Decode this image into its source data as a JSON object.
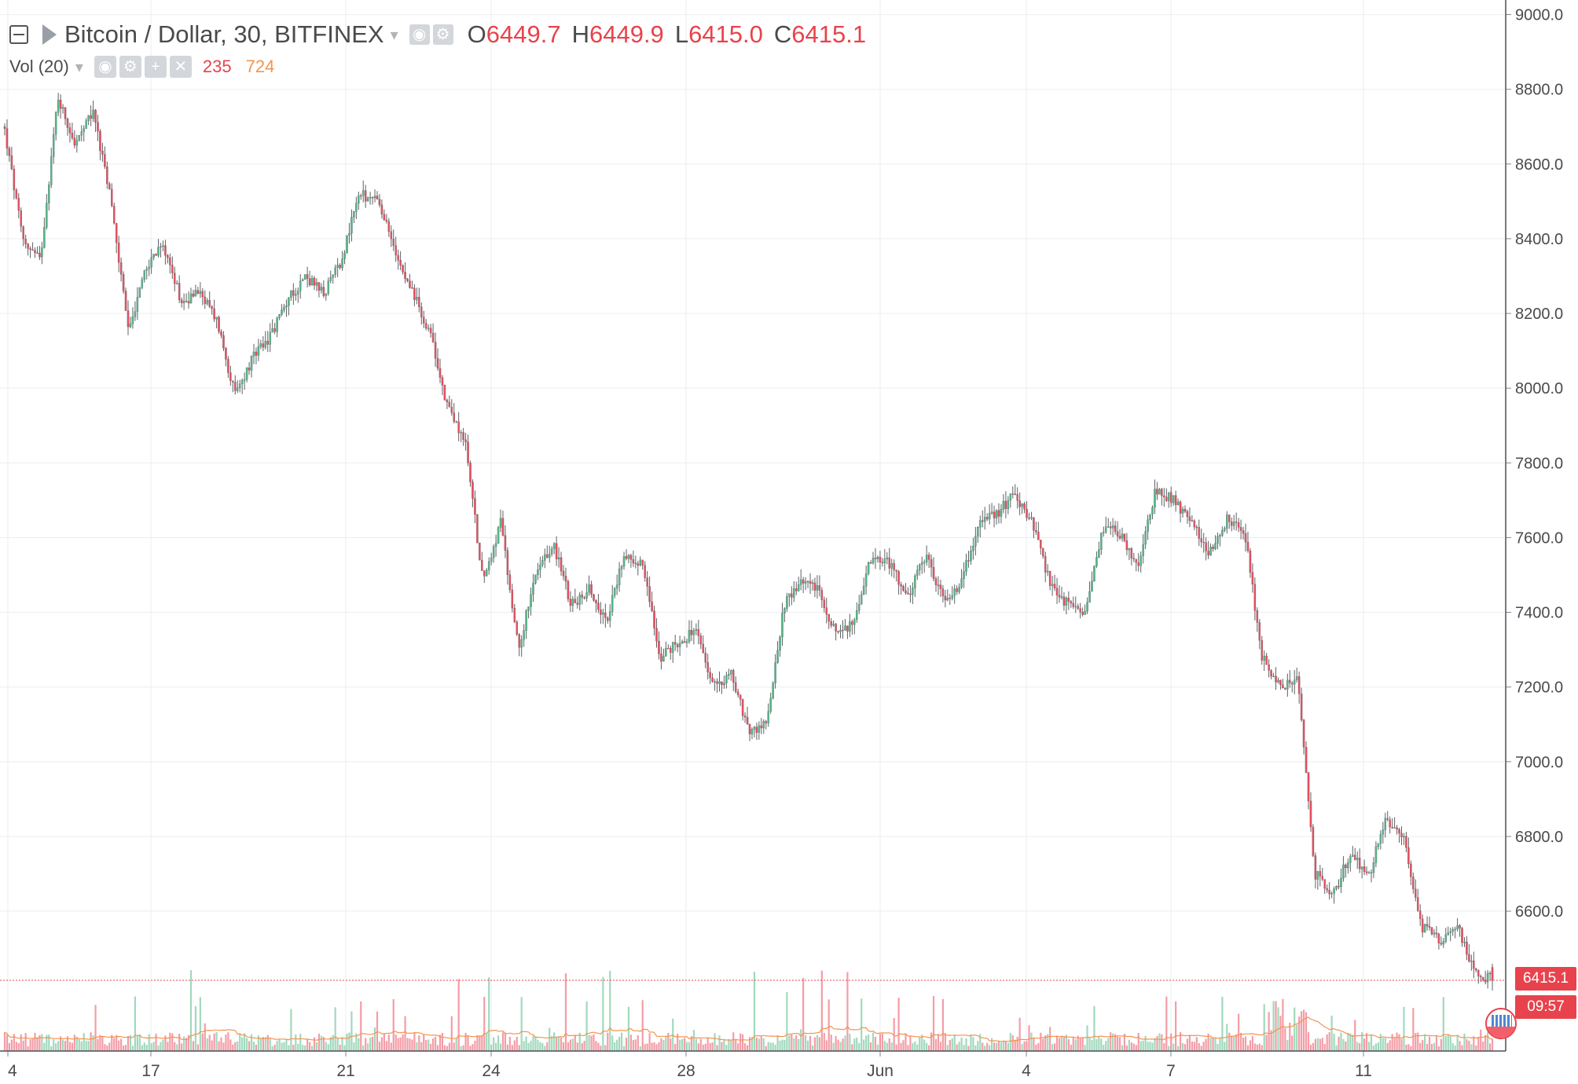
{
  "legend": {
    "title": "Bitcoin / Dollar, 30, BITFINEX",
    "open_label": "O",
    "open_value": "6449.7",
    "high_label": "H",
    "high_value": "6449.9",
    "low_label": "L",
    "low_value": "6415.0",
    "close_label": "C",
    "close_value": "6415.1",
    "volume_indicator": "Vol (20)",
    "volume_value": "235",
    "volume_ma_value": "724"
  },
  "price_axis": {
    "labels": [
      "9000.0",
      "8800.0",
      "8600.0",
      "8400.0",
      "8200.0",
      "8000.0",
      "7800.0",
      "7600.0",
      "7400.0",
      "7200.0",
      "7000.0",
      "6800.0",
      "6600.0"
    ],
    "last_price": "6415.1",
    "countdown": "09:57"
  },
  "time_axis": {
    "labels": [
      "4",
      "17",
      "21",
      "24",
      "28",
      "Jun",
      "4",
      "7",
      "11"
    ]
  },
  "colors": {
    "up": "#53b987",
    "down": "#eb4d5c",
    "volume_ma": "#f4944e",
    "grid": "#edf0f3",
    "axis_text": "#4a4a4a",
    "last_price": "#e8434c"
  },
  "icons": [
    "collapse-icon",
    "series-flag-icon",
    "dropdown-caret-icon",
    "eye-icon",
    "gear-icon",
    "plus-icon",
    "close-icon",
    "currency-flag-icon"
  ],
  "chart_data": {
    "type": "candlestick",
    "symbol": "Bitcoin / Dollar",
    "interval": "30",
    "exchange": "BITFINEX",
    "ylim": [
      6380,
      9020
    ],
    "y_ticks": [
      6600,
      6800,
      7000,
      7200,
      7400,
      7600,
      7800,
      8000,
      8200,
      8400,
      8600,
      8800,
      9000
    ],
    "x_tick_labels": [
      "4",
      "17",
      "21",
      "24",
      "28",
      "Jun",
      "4",
      "7",
      "11"
    ],
    "grid": true,
    "last_price": 6415.1,
    "last_bar": {
      "open": 6449.7,
      "high": 6449.9,
      "low": 6415.0,
      "close": 6415.1,
      "volume": 235,
      "volume_ma20": 724
    },
    "close_path": [
      {
        "x": "4",
        "y": 8690
      },
      {
        "x": "4",
        "y": 8400
      },
      {
        "x": "4",
        "y": 8340
      },
      {
        "x": "",
        "y": 8780
      },
      {
        "x": "",
        "y": 8650
      },
      {
        "x": "",
        "y": 8740
      },
      {
        "x": "",
        "y": 8500
      },
      {
        "x": "",
        "y": 8150
      },
      {
        "x": "",
        "y": 8330
      },
      {
        "x": "",
        "y": 8380
      },
      {
        "x": "",
        "y": 8230
      },
      {
        "x": "17",
        "y": 8260
      },
      {
        "x": "",
        "y": 8180
      },
      {
        "x": "",
        "y": 7980
      },
      {
        "x": "",
        "y": 8080
      },
      {
        "x": "",
        "y": 8140
      },
      {
        "x": "",
        "y": 8240
      },
      {
        "x": "",
        "y": 8300
      },
      {
        "x": "",
        "y": 8250
      },
      {
        "x": "",
        "y": 8340
      },
      {
        "x": "21",
        "y": 8520
      },
      {
        "x": "",
        "y": 8500
      },
      {
        "x": "",
        "y": 8380
      },
      {
        "x": "",
        "y": 8260
      },
      {
        "x": "",
        "y": 8150
      },
      {
        "x": "",
        "y": 7950
      },
      {
        "x": "",
        "y": 7860
      },
      {
        "x": "",
        "y": 7480
      },
      {
        "x": "24",
        "y": 7640
      },
      {
        "x": "",
        "y": 7300
      },
      {
        "x": "",
        "y": 7500
      },
      {
        "x": "",
        "y": 7580
      },
      {
        "x": "",
        "y": 7420
      },
      {
        "x": "",
        "y": 7460
      },
      {
        "x": "",
        "y": 7380
      },
      {
        "x": "",
        "y": 7560
      },
      {
        "x": "",
        "y": 7530
      },
      {
        "x": "",
        "y": 7280
      },
      {
        "x": "",
        "y": 7320
      },
      {
        "x": "",
        "y": 7350
      },
      {
        "x": "28",
        "y": 7200
      },
      {
        "x": "",
        "y": 7240
      },
      {
        "x": "",
        "y": 7080
      },
      {
        "x": "",
        "y": 7100
      },
      {
        "x": "",
        "y": 7420
      },
      {
        "x": "",
        "y": 7490
      },
      {
        "x": "",
        "y": 7460
      },
      {
        "x": "",
        "y": 7330
      },
      {
        "x": "",
        "y": 7380
      },
      {
        "x": "",
        "y": 7560
      },
      {
        "x": "Jun",
        "y": 7530
      },
      {
        "x": "",
        "y": 7440
      },
      {
        "x": "",
        "y": 7550
      },
      {
        "x": "",
        "y": 7430
      },
      {
        "x": "",
        "y": 7480
      },
      {
        "x": "",
        "y": 7640
      },
      {
        "x": "",
        "y": 7660
      },
      {
        "x": "",
        "y": 7720
      },
      {
        "x": "4",
        "y": 7640
      },
      {
        "x": "",
        "y": 7480
      },
      {
        "x": "",
        "y": 7420
      },
      {
        "x": "",
        "y": 7400
      },
      {
        "x": "",
        "y": 7630
      },
      {
        "x": "",
        "y": 7610
      },
      {
        "x": "",
        "y": 7520
      },
      {
        "x": "7",
        "y": 7730
      },
      {
        "x": "",
        "y": 7700
      },
      {
        "x": "",
        "y": 7640
      },
      {
        "x": "",
        "y": 7560
      },
      {
        "x": "",
        "y": 7650
      },
      {
        "x": "",
        "y": 7620
      },
      {
        "x": "",
        "y": 7280
      },
      {
        "x": "",
        "y": 7200
      },
      {
        "x": "",
        "y": 7220
      },
      {
        "x": "11",
        "y": 6700
      },
      {
        "x": "",
        "y": 6640
      },
      {
        "x": "",
        "y": 6760
      },
      {
        "x": "",
        "y": 6690
      },
      {
        "x": "",
        "y": 6850
      },
      {
        "x": "",
        "y": 6800
      },
      {
        "x": "",
        "y": 6560
      },
      {
        "x": "",
        "y": 6520
      },
      {
        "x": "",
        "y": 6560
      },
      {
        "x": "",
        "y": 6440
      },
      {
        "x": "",
        "y": 6415
      }
    ]
  }
}
